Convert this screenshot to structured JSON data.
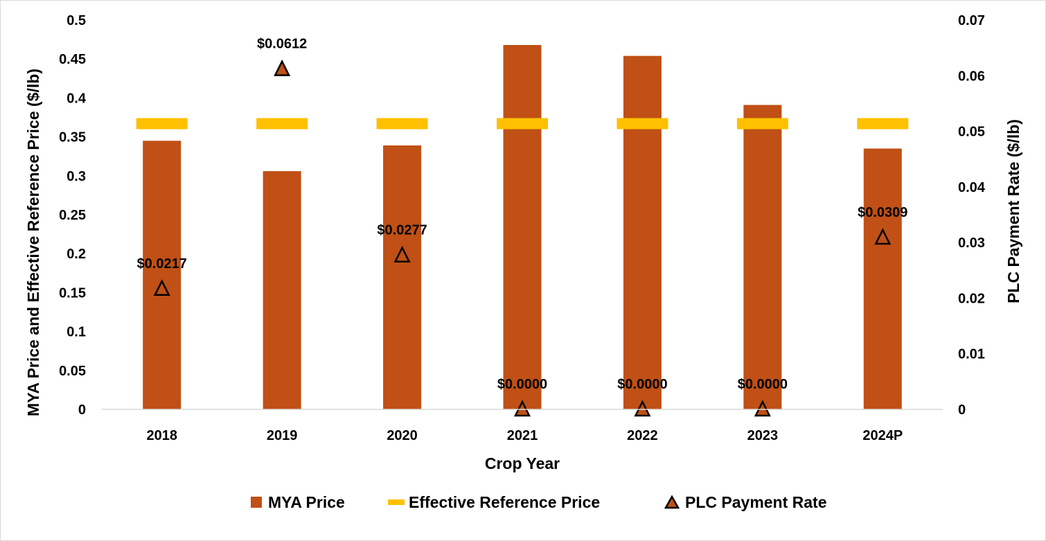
{
  "chart_data": {
    "type": "bar",
    "xlabel": "Crop Year",
    "ylabel": "MYA Price and Effective Reference Price ($/lb)",
    "y2label": "PLC Payment Rate ($/lb)",
    "categories": [
      "2018",
      "2019",
      "2020",
      "2021",
      "2022",
      "2023",
      "2024P"
    ],
    "ylim": [
      0,
      0.5
    ],
    "y_ticks": [
      0,
      0.05,
      0.1,
      0.15,
      0.2,
      0.25,
      0.3,
      0.35,
      0.4,
      0.45,
      0.5
    ],
    "y_tick_labels": [
      "0",
      "0.05",
      "0.1",
      "0.15",
      "0.2",
      "0.25",
      "0.3",
      "0.35",
      "0.4",
      "0.45",
      "0.5"
    ],
    "y2lim": [
      0,
      0.07
    ],
    "y2_ticks": [
      0,
      0.01,
      0.02,
      0.03,
      0.04,
      0.05,
      0.06,
      0.07
    ],
    "y2_tick_labels": [
      "0",
      "0.01",
      "0.02",
      "0.03",
      "0.04",
      "0.05",
      "0.06",
      "0.07"
    ],
    "grid": false,
    "legend_position": "bottom",
    "series": [
      {
        "name": "MYA Price",
        "type": "bar",
        "axis": "left",
        "color": "#c05015",
        "values": [
          0.345,
          0.306,
          0.339,
          0.468,
          0.454,
          0.391,
          0.335
        ]
      },
      {
        "name": "Effective Reference Price",
        "type": "dash",
        "axis": "left",
        "color": "#ffc000",
        "values": [
          0.367,
          0.367,
          0.367,
          0.367,
          0.367,
          0.367,
          0.367
        ]
      },
      {
        "name": "PLC Payment Rate",
        "type": "marker",
        "axis": "right",
        "color": "#c05015",
        "values": [
          0.0217,
          0.0612,
          0.0277,
          0,
          0,
          0,
          0.0309
        ],
        "labels": [
          "$0.0217",
          "$0.0612",
          "$0.0277",
          "$0.0000",
          "$0.0000",
          "$0.0000",
          "$0.0309"
        ]
      }
    ]
  }
}
